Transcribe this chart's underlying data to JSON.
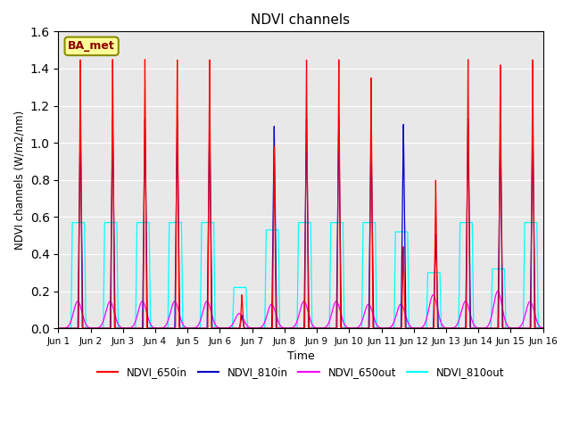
{
  "title": "NDVI channels",
  "ylabel": "NDVI channels (W/m2/nm)",
  "xlabel": "Time",
  "ylim": [
    0.0,
    1.6
  ],
  "yticks": [
    0.0,
    0.2,
    0.4,
    0.6,
    0.8,
    1.0,
    1.2,
    1.4,
    1.6
  ],
  "xtick_labels": [
    "Jun 1",
    "Jun 2",
    "Jun 3",
    "Jun 4",
    "Jun 5",
    "Jun 6",
    "Jun 7",
    "Jun 8",
    "Jun 9",
    "Jun 10",
    "Jun 11",
    "Jun 12",
    "Jun 13",
    "Jun 14",
    "Jun 15",
    "Jun 16"
  ],
  "annotation_text": "BA_met",
  "annotation_box_color": "#FFFF99",
  "annotation_border_color": "#8B8B00",
  "colors": {
    "NDVI_650in": "#FF0000",
    "NDVI_810in": "#0000CC",
    "NDVI_650out": "#FF00FF",
    "NDVI_810out": "#00FFFF"
  },
  "peak_650in": 1.45,
  "peak_810in": 1.13,
  "peak_650out": 0.145,
  "peak_810out": 0.57,
  "background_color": "#E8E8E8",
  "special_peaks": {
    "5": {
      "650in": 0.18,
      "810in": 0.07,
      "650out": 0.08,
      "810out": 0.22
    },
    "6": {
      "650in": 0.98,
      "810in": 1.09,
      "650out": 0.13,
      "810out": 0.53
    },
    "9": {
      "650in": 1.35,
      "810in": 1.07,
      "650out": 0.13,
      "810out": 0.57
    },
    "10": {
      "650in": 0.44,
      "810in": 1.1,
      "650out": 0.13,
      "810out": 0.52
    },
    "11": {
      "650in": 0.8,
      "810in": 0.51,
      "650out": 0.18,
      "810out": 0.3
    },
    "13": {
      "650in": 1.42,
      "810in": 1.1,
      "650out": 0.2,
      "810out": 0.32
    }
  }
}
